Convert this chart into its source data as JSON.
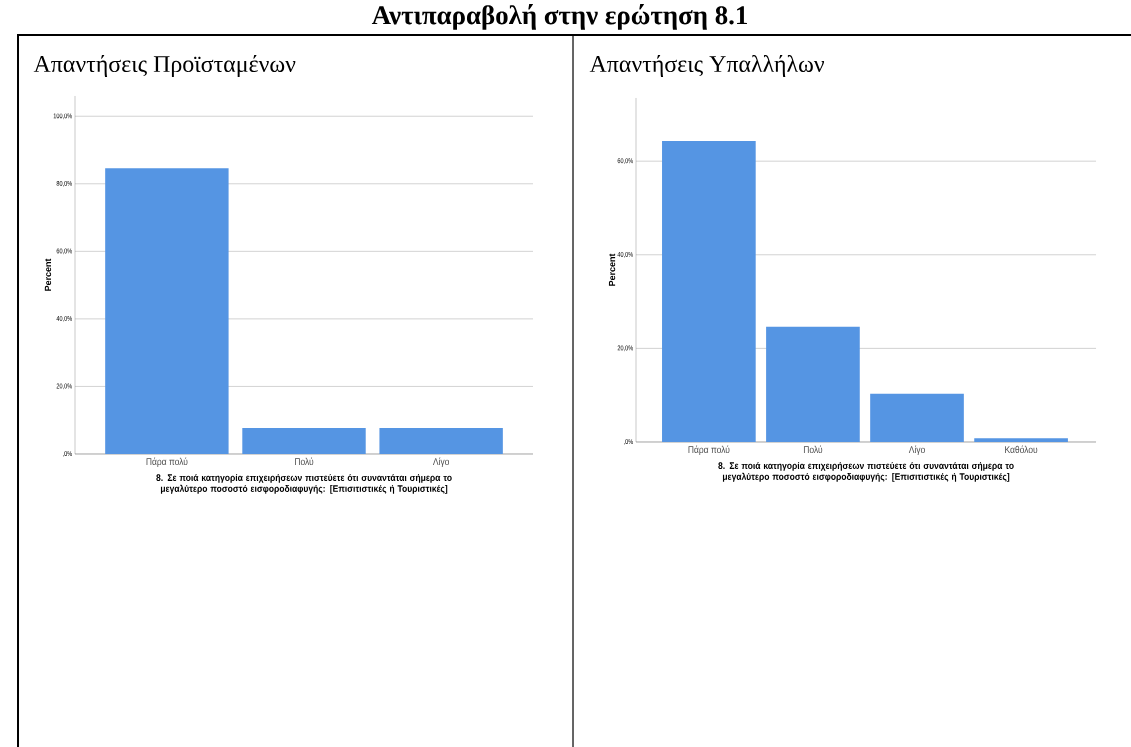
{
  "chart_data": [
    {
      "type": "bar",
      "title": "Απαντήσεις Προϊσταμένων",
      "annotations": [
        "Αντιπαραβολή στην ερώτηση 8.1"
      ],
      "categories": [
        "Πάρα πολύ",
        "Πολύ",
        "Λίγο"
      ],
      "values": [
        84.6,
        7.7,
        7.7
      ],
      "color": "#5595e3",
      "ylim": [
        0,
        106
      ],
      "yticks": [
        {
          "value": 0,
          "label": ",0%"
        },
        {
          "value": 20,
          "label": "20,0%"
        },
        {
          "value": 40,
          "label": "40,0%"
        },
        {
          "value": 60,
          "label": "60,0%"
        },
        {
          "value": 80,
          "label": "80,0%"
        },
        {
          "value": 100,
          "label": "100,0%"
        }
      ],
      "xlabel": "8. Σε ποιά κατηγορία επιχειρήσεων πιστεύετε ότι συναντάται σήμερα το μεγαλύτερο ποσοστό εισφοροδιαφυγής: [Επισιτιστικές ή Τουριστικές]",
      "ylabel": "Percent",
      "grid": "y"
    },
    {
      "type": "bar",
      "title": "Απαντήσεις Υπαλλήλων",
      "categories": [
        "Πάρα πολύ",
        "Πολύ",
        "Λίγο",
        "Καθόλου"
      ],
      "values": [
        64.3,
        24.6,
        10.3,
        0.8
      ],
      "color": "#5595e3",
      "ylim": [
        0,
        73.5
      ],
      "yticks": [
        {
          "value": 0,
          "label": ",0%"
        },
        {
          "value": 20,
          "label": "20,0%"
        },
        {
          "value": 40,
          "label": "40,0%"
        },
        {
          "value": 60,
          "label": "60,0%"
        }
      ],
      "xlabel": "8. Σε ποιά κατηγορία επιχειρήσεων πιστεύετε ότι συναντάται σήμερα το μεγαλύτερο ποσοστό εισφοροδιαφυγής: [Επισιτιστικές ή Τουριστικές]",
      "ylabel": "Percent",
      "grid": "y"
    }
  ]
}
